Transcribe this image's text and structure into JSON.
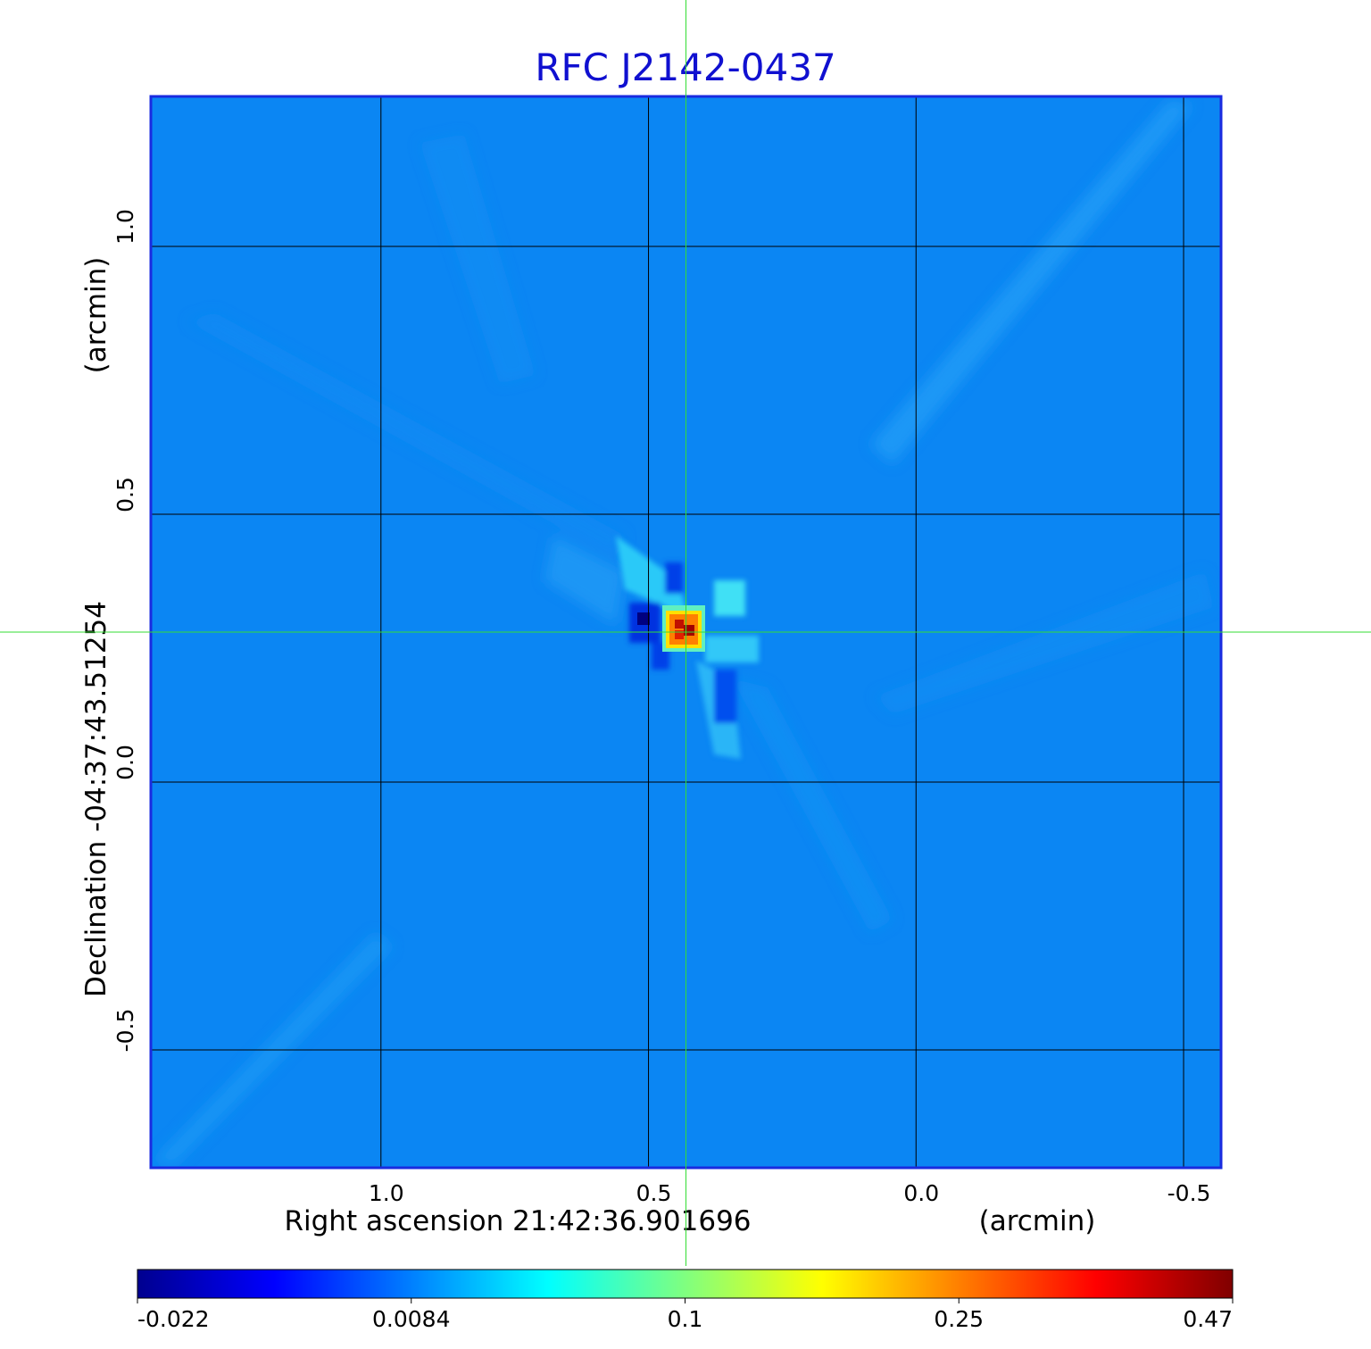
{
  "chart_data": {
    "type": "heatmap",
    "title": "RFC J2142-0437",
    "x_axis": {
      "label_main": "Right ascension  21:42:36.901696",
      "label_unit": "(arcmin)",
      "ticks": [
        1.0,
        0.5,
        0.0,
        -0.5
      ],
      "tick_labels": [
        "1.0",
        "0.5",
        "0.0",
        "-0.5"
      ],
      "range": [
        1.43,
        -0.57
      ]
    },
    "y_axis": {
      "label_main": "Declination  -04:37:43.51254",
      "label_unit": "(arcmin)",
      "ticks": [
        1.0,
        0.5,
        0.0,
        -0.5
      ],
      "tick_labels": [
        "1.0",
        "0.5",
        "0.0",
        "-0.5"
      ],
      "range": [
        -0.72,
        1.28
      ]
    },
    "grid": true,
    "crosshair": {
      "x": 0.43,
      "y": 0.28,
      "color": "#33dd33"
    },
    "colorbar": {
      "orientation": "horizontal",
      "placement": "bottom",
      "colormap": "jet",
      "tick_labels": [
        "-0.022",
        "0.0084",
        "0.1",
        "0.25",
        "0.47"
      ]
    },
    "peak": {
      "x": 0.43,
      "y": 0.28,
      "value": 0.47
    },
    "colors": {
      "frame": "#1a2be0",
      "background_field": "#0b86f3"
    }
  }
}
